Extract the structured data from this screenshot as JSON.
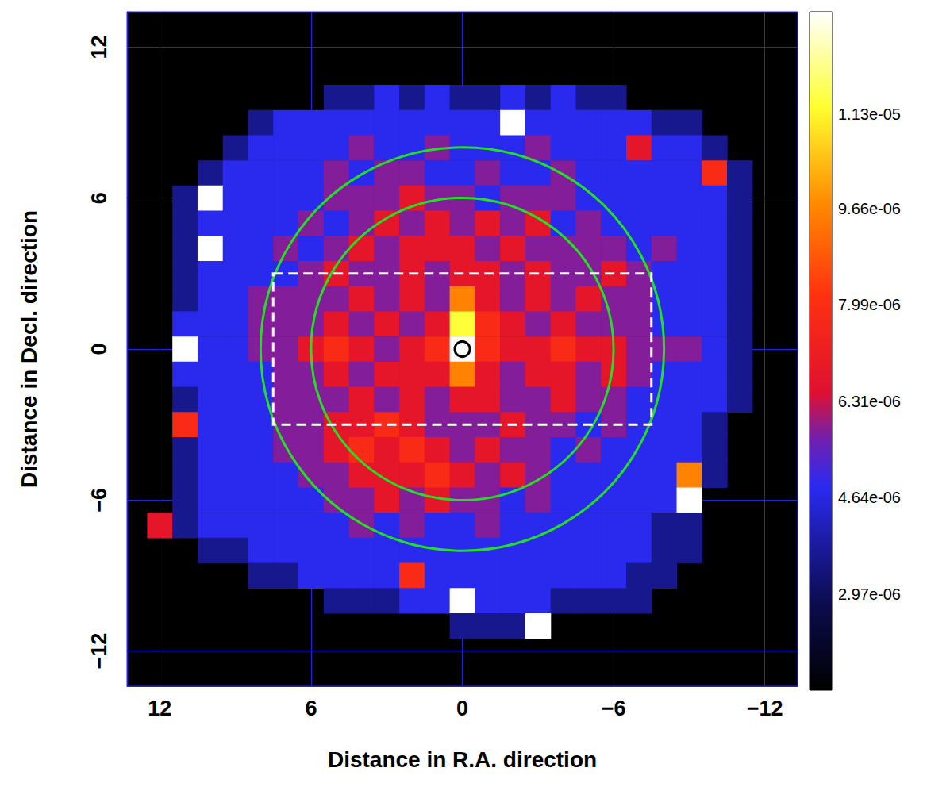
{
  "chart_data": {
    "type": "heatmap",
    "xlabel": "Distance in R.A. direction",
    "ylabel": "Distance in Decl. direction",
    "xlim": [
      13.3,
      -13.3
    ],
    "ylim": [
      -13.4,
      13.4
    ],
    "xticks": [
      12,
      6,
      0,
      {
        "value": -6,
        "label": "−6"
      },
      {
        "value": -12,
        "label": "−12"
      }
    ],
    "yticks": [
      {
        "value": -12,
        "label": "−12"
      },
      {
        "value": -6,
        "label": "−6"
      },
      0,
      6,
      12
    ],
    "grid": true,
    "cells": {
      "x": [
        12,
        11,
        10,
        9,
        8,
        7,
        6,
        5,
        4,
        3,
        2,
        1,
        0,
        -1,
        -2,
        -3,
        -4,
        -5,
        -6,
        -7,
        -8,
        -9,
        -10,
        -11,
        -12
      ],
      "y": [
        12,
        11,
        10,
        9,
        8,
        7,
        6,
        5,
        4,
        3,
        2,
        1,
        0,
        -1,
        -2,
        -3,
        -4,
        -5,
        -6,
        -7,
        -8,
        -9,
        -10,
        -11,
        -12
      ],
      "values": [
        [
          null,
          null,
          null,
          null,
          null,
          null,
          null,
          null,
          null,
          null,
          null,
          null,
          null,
          null,
          null,
          null,
          null,
          null,
          null,
          null,
          null,
          null,
          null,
          null,
          null
        ],
        [
          null,
          null,
          null,
          null,
          null,
          null,
          null,
          null,
          null,
          null,
          null,
          null,
          null,
          null,
          null,
          null,
          null,
          null,
          null,
          null,
          null,
          null,
          null,
          null,
          null
        ],
        [
          null,
          null,
          null,
          null,
          null,
          null,
          null,
          3.6e-06,
          3.6e-06,
          4.8e-06,
          3.6e-06,
          4.8e-06,
          3.6e-06,
          3.6e-06,
          4.8e-06,
          3.6e-06,
          4.8e-06,
          3.6e-06,
          3.6e-06,
          null,
          null,
          null,
          null,
          null,
          null
        ],
        [
          null,
          null,
          null,
          null,
          3.6e-06,
          4.8e-06,
          4.8e-06,
          4.8e-06,
          4.8e-06,
          4.8e-06,
          4.8e-06,
          4.8e-06,
          4.8e-06,
          4.8e-06,
          1.6e-05,
          4.8e-06,
          4.8e-06,
          4.8e-06,
          4.8e-06,
          4.8e-06,
          3.6e-06,
          3.6e-06,
          null,
          null,
          null
        ],
        [
          null,
          null,
          null,
          3.6e-06,
          4.8e-06,
          4.8e-06,
          4.8e-06,
          4.8e-06,
          5.8e-06,
          4.8e-06,
          4.8e-06,
          5.8e-06,
          4.8e-06,
          4.8e-06,
          4.8e-06,
          5.8e-06,
          4.8e-06,
          4.8e-06,
          4.8e-06,
          6.8e-06,
          4.8e-06,
          4.8e-06,
          3.6e-06,
          null,
          null
        ],
        [
          null,
          null,
          3.6e-06,
          4.8e-06,
          4.8e-06,
          4.8e-06,
          4.8e-06,
          5.8e-06,
          4.8e-06,
          5.8e-06,
          5.8e-06,
          4.8e-06,
          4.8e-06,
          5.8e-06,
          4.8e-06,
          4.8e-06,
          5.8e-06,
          4.8e-06,
          4.8e-06,
          4.8e-06,
          4.8e-06,
          4.8e-06,
          7.8e-06,
          3.6e-06,
          null
        ],
        [
          null,
          3.6e-06,
          1.6e-05,
          4.8e-06,
          4.8e-06,
          4.8e-06,
          4.8e-06,
          5.8e-06,
          5.8e-06,
          5.8e-06,
          6.8e-06,
          5.8e-06,
          5.8e-06,
          4.8e-06,
          5.8e-06,
          5.8e-06,
          5.8e-06,
          4.8e-06,
          4.8e-06,
          4.8e-06,
          4.8e-06,
          4.8e-06,
          4.8e-06,
          3.6e-06,
          null
        ],
        [
          null,
          3.6e-06,
          4.8e-06,
          4.8e-06,
          4.8e-06,
          4.8e-06,
          5.8e-06,
          4.8e-06,
          5.8e-06,
          6.8e-06,
          5.8e-06,
          6.8e-06,
          5.8e-06,
          6.8e-06,
          5.8e-06,
          6.8e-06,
          4.8e-06,
          5.8e-06,
          4.8e-06,
          4.8e-06,
          4.8e-06,
          4.8e-06,
          4.8e-06,
          3.6e-06,
          null
        ],
        [
          null,
          3.6e-06,
          1.6e-05,
          4.8e-06,
          4.8e-06,
          5.8e-06,
          4.8e-06,
          5.8e-06,
          6.8e-06,
          5.8e-06,
          6.8e-06,
          6.8e-06,
          6.8e-06,
          5.8e-06,
          6.8e-06,
          5.8e-06,
          5.8e-06,
          5.8e-06,
          5.8e-06,
          4.8e-06,
          5.8e-06,
          4.8e-06,
          4.8e-06,
          3.6e-06,
          null
        ],
        [
          null,
          3.6e-06,
          4.8e-06,
          4.8e-06,
          4.8e-06,
          4.8e-06,
          5.8e-06,
          6.8e-06,
          5.8e-06,
          5.8e-06,
          6.8e-06,
          5.8e-06,
          6.8e-06,
          6.8e-06,
          5.8e-06,
          6.8e-06,
          5.8e-06,
          5.8e-06,
          6.8e-06,
          5.8e-06,
          4.8e-06,
          4.8e-06,
          4.8e-06,
          3.6e-06,
          null
        ],
        [
          null,
          3.6e-06,
          4.8e-06,
          4.8e-06,
          5.8e-06,
          5.8e-06,
          5.8e-06,
          5.8e-06,
          6.8e-06,
          5.8e-06,
          6.8e-06,
          5.8e-06,
          9.6e-06,
          6.8e-06,
          5.8e-06,
          6.8e-06,
          5.8e-06,
          6.8e-06,
          5.8e-06,
          5.8e-06,
          4.8e-06,
          4.8e-06,
          4.8e-06,
          3.6e-06,
          null
        ],
        [
          null,
          4.8e-06,
          4.8e-06,
          4.8e-06,
          5.8e-06,
          5.8e-06,
          5.8e-06,
          6.8e-06,
          5.8e-06,
          6.8e-06,
          5.8e-06,
          6.8e-06,
          1.15e-05,
          7.8e-06,
          6.8e-06,
          5.8e-06,
          6.8e-06,
          5.8e-06,
          5.8e-06,
          5.8e-06,
          4.8e-06,
          4.8e-06,
          4.8e-06,
          3.6e-06,
          null
        ],
        [
          null,
          1.6e-05,
          4.8e-06,
          4.8e-06,
          5.8e-06,
          5.8e-06,
          6.8e-06,
          7.8e-06,
          6.8e-06,
          5.8e-06,
          6.8e-06,
          7.8e-06,
          1.6e-05,
          7.8e-06,
          6.8e-06,
          6.8e-06,
          7.8e-06,
          6.8e-06,
          6.8e-06,
          5.8e-06,
          5.8e-06,
          5.8e-06,
          4.8e-06,
          3.6e-06,
          null
        ],
        [
          null,
          4.8e-06,
          4.8e-06,
          4.8e-06,
          4.8e-06,
          5.8e-06,
          5.8e-06,
          6.8e-06,
          5.8e-06,
          6.8e-06,
          6.8e-06,
          6.8e-06,
          9.6e-06,
          6.8e-06,
          5.8e-06,
          6.8e-06,
          6.8e-06,
          5.8e-06,
          6.8e-06,
          5.8e-06,
          4.8e-06,
          4.8e-06,
          4.8e-06,
          3.6e-06,
          null
        ],
        [
          null,
          3.6e-06,
          4.8e-06,
          4.8e-06,
          4.8e-06,
          5.8e-06,
          5.8e-06,
          5.8e-06,
          6.8e-06,
          5.8e-06,
          6.8e-06,
          5.8e-06,
          6.8e-06,
          6.8e-06,
          5.8e-06,
          5.8e-06,
          6.8e-06,
          5.8e-06,
          5.8e-06,
          4.8e-06,
          4.8e-06,
          4.8e-06,
          4.8e-06,
          3.6e-06,
          null
        ],
        [
          null,
          7.8e-06,
          4.8e-06,
          4.8e-06,
          4.8e-06,
          5.8e-06,
          5.8e-06,
          6.8e-06,
          6.8e-06,
          7.8e-06,
          6.8e-06,
          5.8e-06,
          5.8e-06,
          5.8e-06,
          6.8e-06,
          5.8e-06,
          5.8e-06,
          4.8e-06,
          5.8e-06,
          4.8e-06,
          4.8e-06,
          4.8e-06,
          3.6e-06,
          null,
          null
        ],
        [
          null,
          3.6e-06,
          4.8e-06,
          4.8e-06,
          4.8e-06,
          5.8e-06,
          5.8e-06,
          6.8e-06,
          7.8e-06,
          6.8e-06,
          7.8e-06,
          6.8e-06,
          5.8e-06,
          6.8e-06,
          5.8e-06,
          5.8e-06,
          4.8e-06,
          5.8e-06,
          4.8e-06,
          4.8e-06,
          4.8e-06,
          4.8e-06,
          3.6e-06,
          null,
          null
        ],
        [
          null,
          3.6e-06,
          4.8e-06,
          4.8e-06,
          4.8e-06,
          4.8e-06,
          5.8e-06,
          5.8e-06,
          6.8e-06,
          6.8e-06,
          6.8e-06,
          7.8e-06,
          6.8e-06,
          5.8e-06,
          6.8e-06,
          5.8e-06,
          4.8e-06,
          4.8e-06,
          4.8e-06,
          4.8e-06,
          4.8e-06,
          9.6e-06,
          3.6e-06,
          null,
          null
        ],
        [
          null,
          3.6e-06,
          4.8e-06,
          4.8e-06,
          4.8e-06,
          4.8e-06,
          4.8e-06,
          5.8e-06,
          5.8e-06,
          6.8e-06,
          5.8e-06,
          6.8e-06,
          5.8e-06,
          5.8e-06,
          4.8e-06,
          5.8e-06,
          4.8e-06,
          4.8e-06,
          4.8e-06,
          4.8e-06,
          4.8e-06,
          1.6e-05,
          null,
          null,
          null
        ],
        [
          6.8e-06,
          3.6e-06,
          4.8e-06,
          4.8e-06,
          4.8e-06,
          4.8e-06,
          4.8e-06,
          4.8e-06,
          5.8e-06,
          4.8e-06,
          5.8e-06,
          4.8e-06,
          4.8e-06,
          5.8e-06,
          4.8e-06,
          4.8e-06,
          4.8e-06,
          4.8e-06,
          4.8e-06,
          4.8e-06,
          3.6e-06,
          3.6e-06,
          null,
          null,
          null
        ],
        [
          null,
          null,
          3.6e-06,
          3.6e-06,
          4.8e-06,
          4.8e-06,
          4.8e-06,
          4.8e-06,
          4.8e-06,
          4.8e-06,
          4.8e-06,
          4.8e-06,
          4.8e-06,
          4.8e-06,
          4.8e-06,
          4.8e-06,
          4.8e-06,
          4.8e-06,
          4.8e-06,
          4.8e-06,
          3.6e-06,
          3.6e-06,
          null,
          null,
          null
        ],
        [
          null,
          null,
          null,
          null,
          3.6e-06,
          3.6e-06,
          4.8e-06,
          4.8e-06,
          4.8e-06,
          4.8e-06,
          7.8e-06,
          4.8e-06,
          4.8e-06,
          4.8e-06,
          4.8e-06,
          4.8e-06,
          4.8e-06,
          4.8e-06,
          4.8e-06,
          3.6e-06,
          3.6e-06,
          null,
          null,
          null,
          null
        ],
        [
          null,
          null,
          null,
          null,
          null,
          null,
          null,
          3.6e-06,
          3.6e-06,
          3.6e-06,
          4.8e-06,
          4.8e-06,
          1.6e-05,
          4.8e-06,
          4.8e-06,
          4.8e-06,
          3.6e-06,
          3.6e-06,
          3.6e-06,
          3.6e-06,
          null,
          null,
          null,
          null,
          null
        ],
        [
          null,
          null,
          null,
          null,
          null,
          null,
          null,
          null,
          null,
          null,
          null,
          null,
          3.6e-06,
          3.6e-06,
          3.6e-06,
          1.6e-05,
          null,
          null,
          null,
          null,
          null,
          null,
          null,
          null,
          null
        ],
        [
          null,
          null,
          null,
          null,
          null,
          null,
          null,
          null,
          null,
          null,
          null,
          null,
          null,
          null,
          null,
          null,
          null,
          null,
          null,
          null,
          null,
          null,
          null,
          null,
          null
        ]
      ]
    },
    "colorbar": {
      "range": [
        1.3e-06,
        1.307e-05
      ],
      "ticks": [
        {
          "value": 2.97e-06,
          "label": "2.97e-06"
        },
        {
          "value": 4.64e-06,
          "label": "4.64e-06"
        },
        {
          "value": 6.31e-06,
          "label": "6.31e-06"
        },
        {
          "value": 7.99e-06,
          "label": "7.99e-06"
        },
        {
          "value": 9.66e-06,
          "label": "9.66e-06"
        },
        {
          "value": 1.13e-05,
          "label": "1.13e-05"
        }
      ]
    },
    "overlays": [
      {
        "shape": "circle",
        "x": 0,
        "y": 0,
        "radius": 8,
        "color": "#22e022",
        "line_style": "solid"
      },
      {
        "shape": "circle",
        "x": 0,
        "y": 0,
        "radius": 6,
        "color": "#22e022",
        "line_style": "solid"
      },
      {
        "shape": "rectangle",
        "x": [
          7.5,
          -7.5
        ],
        "y": [
          3,
          -3
        ],
        "color": "#ffffff",
        "line_style": "dashed"
      },
      {
        "shape": "circle",
        "x": 0,
        "y": 0,
        "radius": 0.3,
        "color": "#000000",
        "line_style": "solid"
      }
    ]
  }
}
